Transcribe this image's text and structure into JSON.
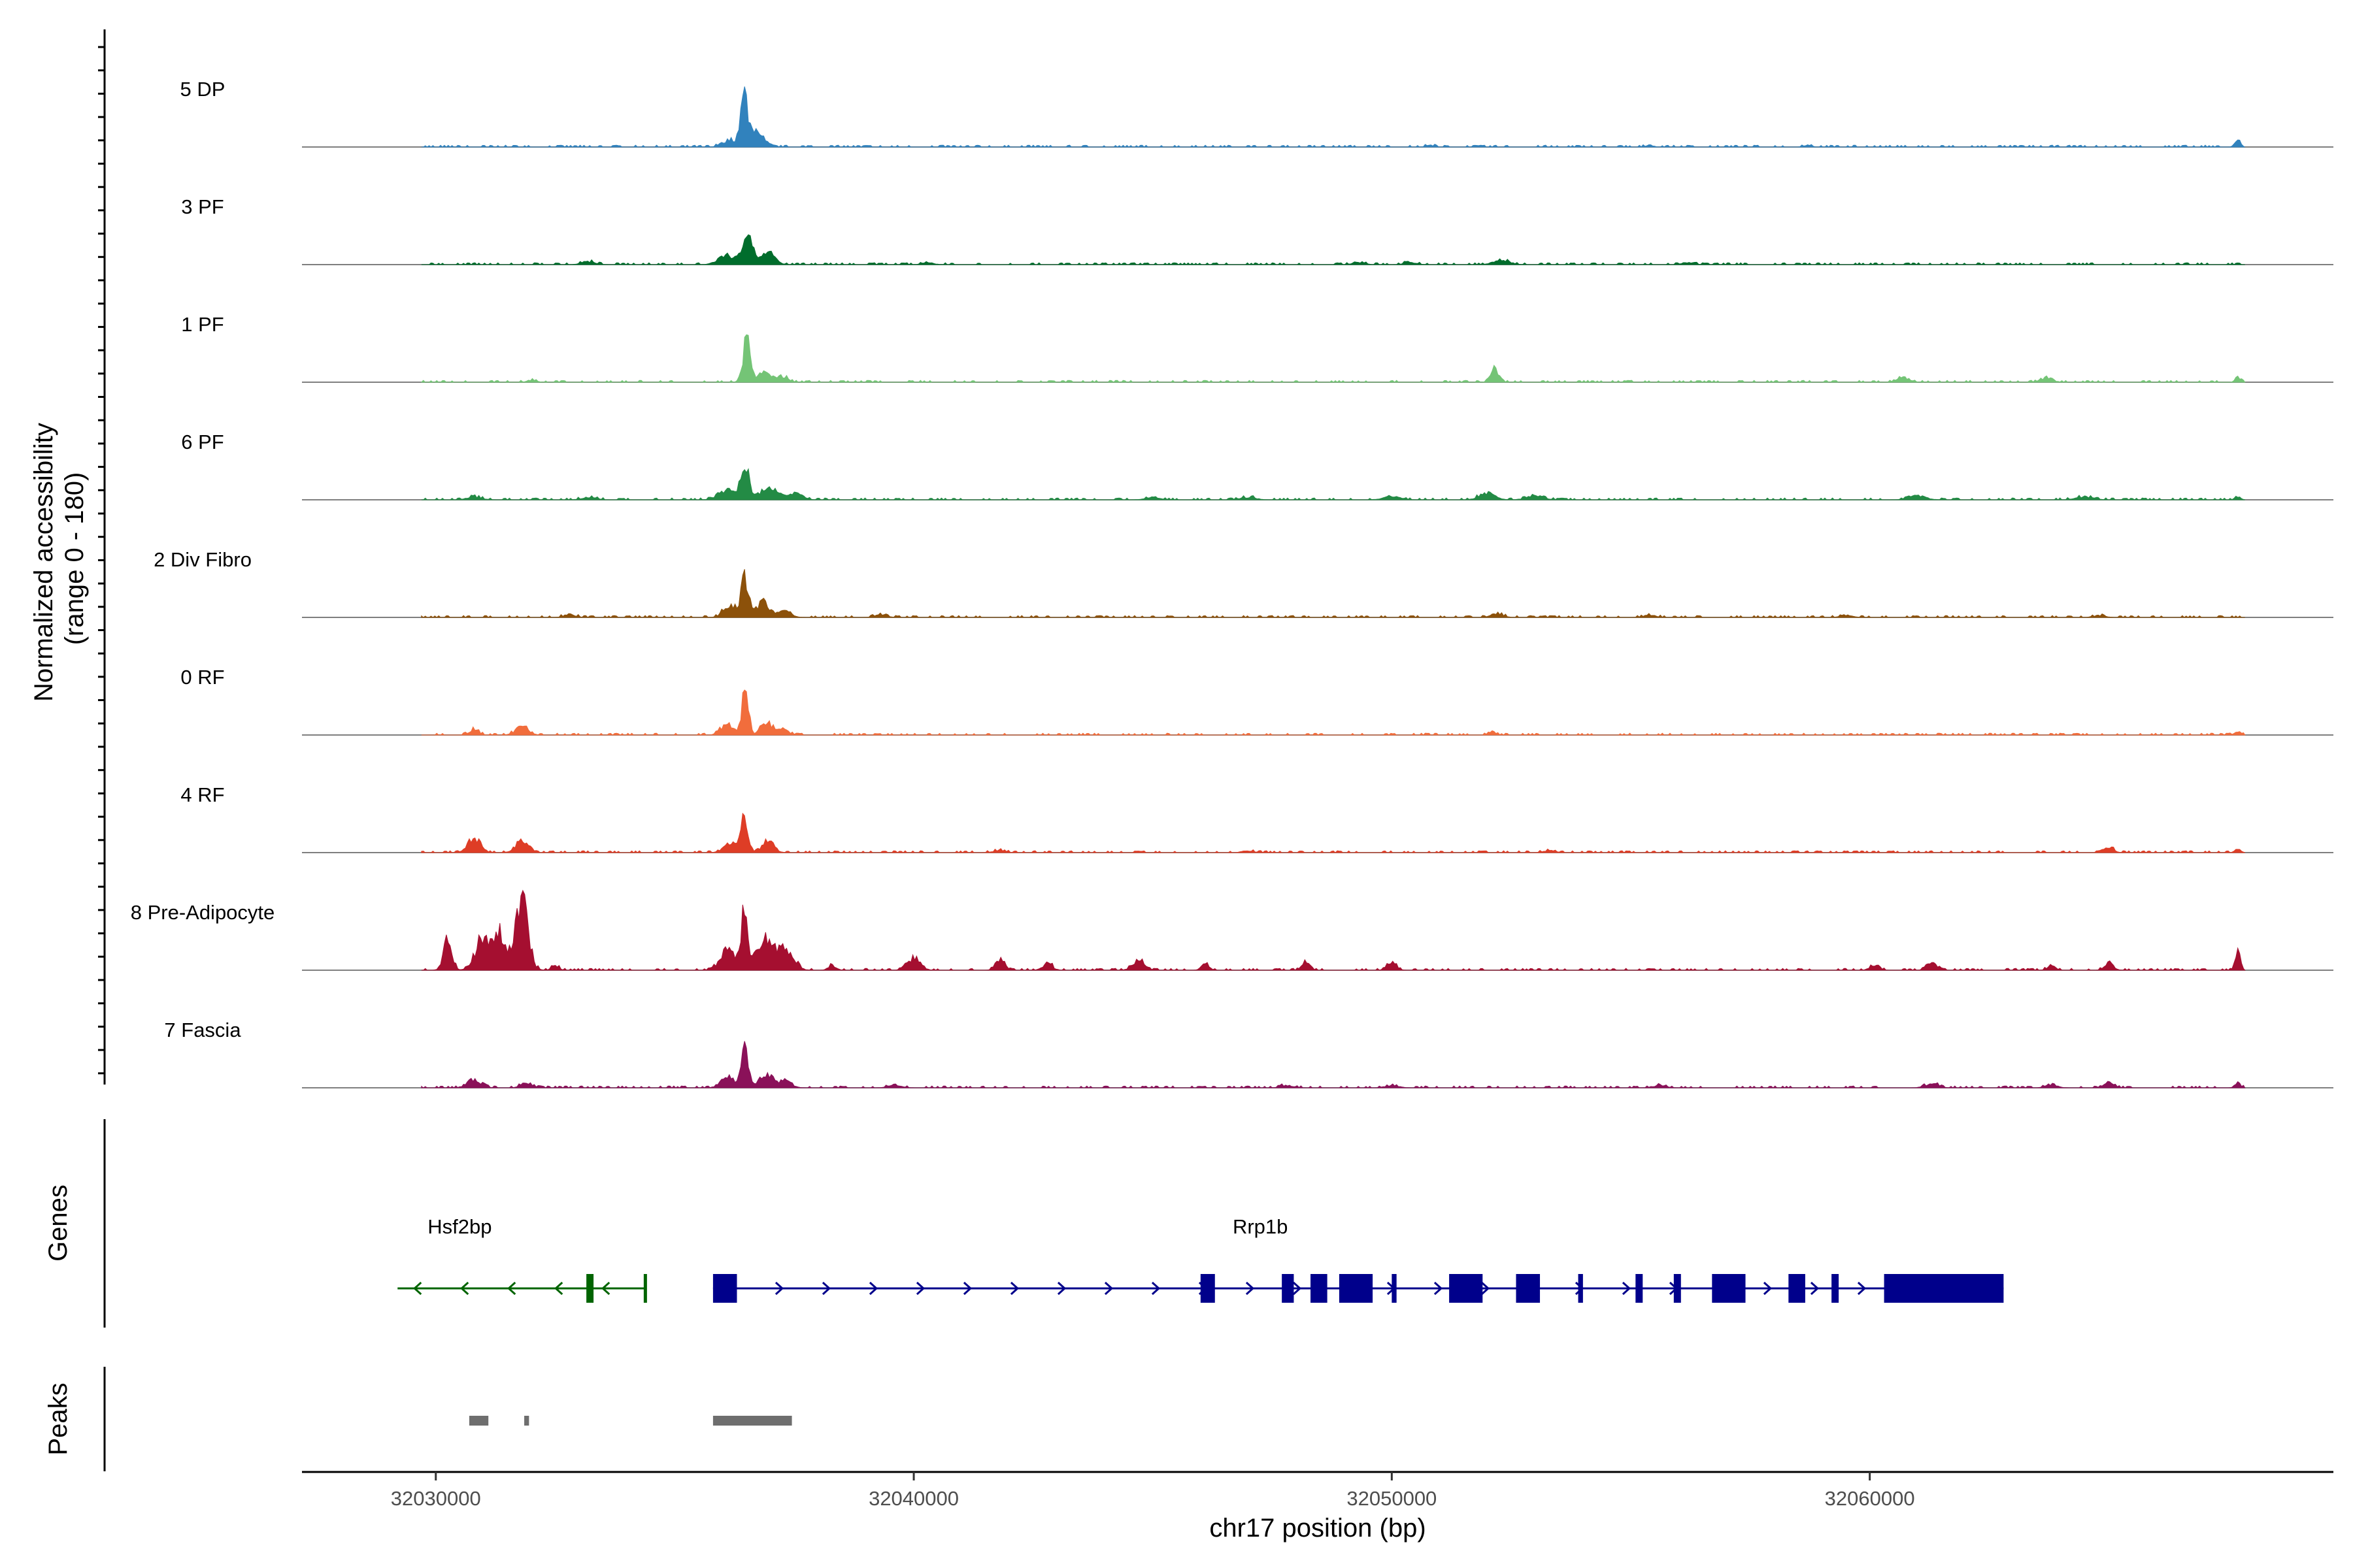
{
  "chart_data": {
    "type": "area",
    "title": "",
    "xlabel": "chr17 position (bp)",
    "ylabel": "Normalized accessibility\n(range 0 - 180)",
    "ylabel_lines": [
      "Normalized accessibility",
      "(range 0 - 180)"
    ],
    "y_range": [
      0,
      180
    ],
    "xlim": [
      32027200,
      32069700
    ],
    "x_ticks": [
      32030000,
      32040000,
      32050000,
      32060000
    ],
    "x_tick_labels": [
      "32030000",
      "32040000",
      "32050000",
      "32060000"
    ],
    "tracks": [
      {
        "name": "5 DP",
        "color": "#3182bd",
        "peaks": [
          [
            32036450,
            101,
            75
          ],
          [
            32036700,
            36,
            140
          ],
          [
            32036150,
            15,
            150
          ],
          [
            32067700,
            14,
            60
          ],
          [
            32055400,
            4,
            80
          ],
          [
            32058700,
            4,
            80
          ],
          [
            32050800,
            4,
            80
          ]
        ]
      },
      {
        "name": "3 PF",
        "color": "#006d2c",
        "peaks": [
          [
            32036520,
            59,
            110
          ],
          [
            32036950,
            25,
            140
          ],
          [
            32036100,
            19,
            180
          ],
          [
            32033200,
            6,
            140
          ],
          [
            32052300,
            8,
            180
          ],
          [
            32050400,
            5,
            120
          ],
          [
            32049300,
            5,
            120
          ],
          [
            32056200,
            5,
            120
          ],
          [
            32040300,
            4,
            120
          ]
        ]
      },
      {
        "name": "1 PF",
        "color": "#74c476",
        "peaks": [
          [
            32036500,
            91,
            75
          ],
          [
            32036880,
            20,
            130
          ],
          [
            32037250,
            12,
            110
          ],
          [
            32052150,
            28,
            80
          ],
          [
            32060700,
            9,
            130
          ],
          [
            32063700,
            9,
            130
          ],
          [
            32067700,
            8,
            60
          ],
          [
            32032000,
            4,
            100
          ]
        ]
      },
      {
        "name": "6 PF",
        "color": "#238b45",
        "peaks": [
          [
            32036470,
            69,
            85
          ],
          [
            32036950,
            25,
            180
          ],
          [
            32036100,
            22,
            180
          ],
          [
            32037500,
            14,
            160
          ],
          [
            32052000,
            14,
            160
          ],
          [
            32053000,
            8,
            180
          ],
          [
            32050000,
            7,
            180
          ],
          [
            32061000,
            8,
            180
          ],
          [
            32064500,
            6,
            180
          ],
          [
            32067700,
            6,
            60
          ],
          [
            32030800,
            6,
            150
          ],
          [
            32033200,
            5,
            150
          ],
          [
            32047000,
            5,
            160
          ],
          [
            32045000,
            4,
            160
          ]
        ]
      },
      {
        "name": "2 Div Fibro",
        "color": "#8c510a",
        "peaks": [
          [
            32036470,
            86,
            80
          ],
          [
            32036850,
            34,
            130
          ],
          [
            32036150,
            26,
            130
          ],
          [
            32037300,
            15,
            130
          ],
          [
            32032800,
            6,
            120
          ],
          [
            32039300,
            6,
            120
          ],
          [
            32052200,
            8,
            120
          ],
          [
            32055400,
            5,
            120
          ],
          [
            32059500,
            5,
            120
          ],
          [
            32064800,
            4,
            120
          ]
        ]
      },
      {
        "name": "0 RF",
        "color": "#f16d3c",
        "peaks": [
          [
            32036470,
            95,
            70
          ],
          [
            32036920,
            30,
            110
          ],
          [
            32036100,
            22,
            130
          ],
          [
            32037250,
            12,
            120
          ],
          [
            32031800,
            17,
            130
          ],
          [
            32030800,
            11,
            100
          ],
          [
            32052100,
            7,
            70
          ],
          [
            32067700,
            6,
            70
          ]
        ]
      },
      {
        "name": "4 RF",
        "color": "#de3d26",
        "peaks": [
          [
            32036450,
            68,
            75
          ],
          [
            32036950,
            26,
            120
          ],
          [
            32036150,
            18,
            130
          ],
          [
            32030800,
            31,
            130
          ],
          [
            32031800,
            23,
            130
          ],
          [
            32065000,
            13,
            90
          ],
          [
            32067700,
            7,
            60
          ],
          [
            32041800,
            5,
            120
          ],
          [
            32047000,
            4,
            120
          ],
          [
            32053300,
            4,
            120
          ]
        ]
      },
      {
        "name": "8 Pre-Adipocyte",
        "color": "#a50f30",
        "peaks": [
          [
            32031800,
            145,
            130
          ],
          [
            32031300,
            78,
            150
          ],
          [
            32030950,
            60,
            140
          ],
          [
            32030250,
            60,
            90
          ],
          [
            32036450,
            120,
            70
          ],
          [
            32036100,
            44,
            150
          ],
          [
            32036900,
            62,
            200
          ],
          [
            32037350,
            40,
            150
          ],
          [
            32040000,
            26,
            130
          ],
          [
            32041800,
            25,
            90
          ],
          [
            32044700,
            22,
            120
          ],
          [
            32042800,
            14,
            100
          ],
          [
            32067700,
            35,
            60
          ],
          [
            32065000,
            14,
            90
          ],
          [
            32048200,
            15,
            80
          ],
          [
            32050000,
            14,
            100
          ],
          [
            32061300,
            15,
            100
          ],
          [
            32046100,
            12,
            80
          ],
          [
            32032500,
            11,
            70
          ],
          [
            32063800,
            10,
            80
          ],
          [
            32038300,
            10,
            80
          ],
          [
            32060100,
            12,
            90
          ]
        ]
      },
      {
        "name": "7 Fascia",
        "color": "#8a1159",
        "peaks": [
          [
            32036470,
            78,
            75
          ],
          [
            32036900,
            27,
            140
          ],
          [
            32036100,
            22,
            140
          ],
          [
            32037300,
            14,
            140
          ],
          [
            32030800,
            18,
            140
          ],
          [
            32031900,
            10,
            120
          ],
          [
            32065000,
            12,
            100
          ],
          [
            32067700,
            10,
            60
          ],
          [
            32061300,
            8,
            140
          ],
          [
            32063800,
            6,
            120
          ],
          [
            32055600,
            5,
            140
          ],
          [
            32050000,
            5,
            140
          ],
          [
            32047800,
            5,
            140
          ],
          [
            32039600,
            5,
            140
          ]
        ]
      }
    ],
    "genes_title": "Genes",
    "genes": [
      {
        "name": "Hsf2bp",
        "color": "#006400",
        "strand": "-",
        "start": 32029200,
        "end": 32034400,
        "exons": [
          [
            32033150,
            32033300
          ],
          [
            32034350,
            32034400
          ]
        ]
      },
      {
        "name": "Rrp1b",
        "color": "#00008b",
        "strand": "+",
        "start": 32035800,
        "end": 32062800,
        "exons": [
          [
            32035800,
            32036300
          ],
          [
            32046000,
            32046300
          ],
          [
            32047700,
            32047950
          ],
          [
            32048300,
            32048650
          ],
          [
            32048900,
            32049600
          ],
          [
            32050000,
            32050100
          ],
          [
            32051200,
            32051900
          ],
          [
            32052600,
            32053100
          ],
          [
            32053900,
            32054000
          ],
          [
            32055100,
            32055250
          ],
          [
            32055900,
            32056050
          ],
          [
            32056700,
            32057400
          ],
          [
            32058300,
            32058650
          ],
          [
            32059200,
            32059350
          ],
          [
            32060300,
            32062800
          ]
        ]
      }
    ],
    "peaks_title": "Peaks",
    "peak_regions": [
      [
        32030700,
        32031100
      ],
      [
        32031850,
        32031950
      ],
      [
        32035800,
        32037450
      ]
    ],
    "peak_color": "#6e6e6e"
  }
}
